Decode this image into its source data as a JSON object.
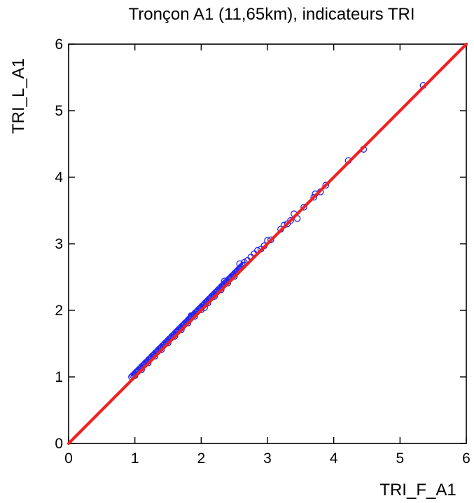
{
  "chart_data": {
    "type": "scatter",
    "title": "Tronçon A1 (11,65km), indicateurs TRI",
    "xlabel": "TRI_F_A1",
    "ylabel": "TRI_L_A1",
    "xlim": [
      0,
      6
    ],
    "ylim": [
      0,
      6
    ],
    "xticks": [
      0,
      1,
      2,
      3,
      4,
      5,
      6
    ],
    "yticks": [
      0,
      1,
      2,
      3,
      4,
      5,
      6
    ],
    "xtick_labels": [
      "0",
      "1",
      "2",
      "3",
      "4",
      "5",
      "6"
    ],
    "ytick_labels": [
      "0",
      "1",
      "2",
      "3",
      "4",
      "5",
      "6"
    ],
    "grid": false,
    "marker_color": "#2222ee",
    "line_color": "#ee2222",
    "reference_line": {
      "x": [
        0,
        6
      ],
      "y": [
        0,
        6
      ]
    },
    "points": [
      [
        0.95,
        1.0
      ],
      [
        0.97,
        1.02
      ],
      [
        0.99,
        1.03
      ],
      [
        1.0,
        1.05
      ],
      [
        1.02,
        1.07
      ],
      [
        1.04,
        1.08
      ],
      [
        1.05,
        1.1
      ],
      [
        1.07,
        1.12
      ],
      [
        1.09,
        1.13
      ],
      [
        1.1,
        1.15
      ],
      [
        1.12,
        1.17
      ],
      [
        1.14,
        1.18
      ],
      [
        1.15,
        1.2
      ],
      [
        1.17,
        1.22
      ],
      [
        1.19,
        1.23
      ],
      [
        1.2,
        1.25
      ],
      [
        1.22,
        1.27
      ],
      [
        1.24,
        1.28
      ],
      [
        1.25,
        1.3
      ],
      [
        1.27,
        1.32
      ],
      [
        1.29,
        1.33
      ],
      [
        1.3,
        1.35
      ],
      [
        1.32,
        1.37
      ],
      [
        1.34,
        1.38
      ],
      [
        1.35,
        1.4
      ],
      [
        1.37,
        1.42
      ],
      [
        1.39,
        1.43
      ],
      [
        1.4,
        1.45
      ],
      [
        1.42,
        1.47
      ],
      [
        1.44,
        1.48
      ],
      [
        1.45,
        1.5
      ],
      [
        1.47,
        1.52
      ],
      [
        1.49,
        1.53
      ],
      [
        1.5,
        1.55
      ],
      [
        1.52,
        1.57
      ],
      [
        1.54,
        1.58
      ],
      [
        1.55,
        1.6
      ],
      [
        1.57,
        1.62
      ],
      [
        1.59,
        1.63
      ],
      [
        1.6,
        1.65
      ],
      [
        1.62,
        1.67
      ],
      [
        1.64,
        1.68
      ],
      [
        1.65,
        1.7
      ],
      [
        1.67,
        1.72
      ],
      [
        1.69,
        1.73
      ],
      [
        1.7,
        1.75
      ],
      [
        1.72,
        1.77
      ],
      [
        1.74,
        1.78
      ],
      [
        1.75,
        1.8
      ],
      [
        1.77,
        1.82
      ],
      [
        1.79,
        1.83
      ],
      [
        1.8,
        1.85
      ],
      [
        1.82,
        1.87
      ],
      [
        1.84,
        1.88
      ],
      [
        1.85,
        1.9
      ],
      [
        1.87,
        1.92
      ],
      [
        1.89,
        1.93
      ],
      [
        1.9,
        1.95
      ],
      [
        1.92,
        1.97
      ],
      [
        1.94,
        1.98
      ],
      [
        1.95,
        2.0
      ],
      [
        1.97,
        2.02
      ],
      [
        1.99,
        2.03
      ],
      [
        2.0,
        2.05
      ],
      [
        2.02,
        2.07
      ],
      [
        2.04,
        2.08
      ],
      [
        2.05,
        2.1
      ],
      [
        2.07,
        2.12
      ],
      [
        2.09,
        2.13
      ],
      [
        2.1,
        2.15
      ],
      [
        2.12,
        2.17
      ],
      [
        2.14,
        2.18
      ],
      [
        2.15,
        2.2
      ],
      [
        2.17,
        2.22
      ],
      [
        2.19,
        2.23
      ],
      [
        2.2,
        2.25
      ],
      [
        2.22,
        2.27
      ],
      [
        2.24,
        2.28
      ],
      [
        2.25,
        2.3
      ],
      [
        2.27,
        2.32
      ],
      [
        2.29,
        2.33
      ],
      [
        2.3,
        2.35
      ],
      [
        2.32,
        2.37
      ],
      [
        2.34,
        2.38
      ],
      [
        2.35,
        2.4
      ],
      [
        2.37,
        2.42
      ],
      [
        2.39,
        2.43
      ],
      [
        2.4,
        2.45
      ],
      [
        2.42,
        2.47
      ],
      [
        2.44,
        2.48
      ],
      [
        2.45,
        2.5
      ],
      [
        2.47,
        2.52
      ],
      [
        2.49,
        2.53
      ],
      [
        2.5,
        2.55
      ],
      [
        2.52,
        2.57
      ],
      [
        2.54,
        2.58
      ],
      [
        2.55,
        2.6
      ],
      [
        2.57,
        2.62
      ],
      [
        2.59,
        2.63
      ],
      [
        2.6,
        2.65
      ],
      [
        2.62,
        2.67
      ],
      [
        2.64,
        2.68
      ],
      [
        1.0,
        1.02
      ],
      [
        1.1,
        1.11
      ],
      [
        1.2,
        1.21
      ],
      [
        1.3,
        1.31
      ],
      [
        1.4,
        1.41
      ],
      [
        1.5,
        1.51
      ],
      [
        1.6,
        1.61
      ],
      [
        1.7,
        1.71
      ],
      [
        1.8,
        1.81
      ],
      [
        1.9,
        1.91
      ],
      [
        2.0,
        2.01
      ],
      [
        2.1,
        2.11
      ],
      [
        2.2,
        2.21
      ],
      [
        2.3,
        2.31
      ],
      [
        2.4,
        2.41
      ],
      [
        2.5,
        2.51
      ],
      [
        1.85,
        1.92
      ],
      [
        2.05,
        2.04
      ],
      [
        2.35,
        2.44
      ],
      [
        2.58,
        2.7
      ],
      [
        2.65,
        2.72
      ],
      [
        2.7,
        2.75
      ],
      [
        2.75,
        2.8
      ],
      [
        2.8,
        2.85
      ],
      [
        2.85,
        2.9
      ],
      [
        2.9,
        2.92
      ],
      [
        2.95,
        2.97
      ],
      [
        3.0,
        3.05
      ],
      [
        3.05,
        3.06
      ],
      [
        3.2,
        3.22
      ],
      [
        3.25,
        3.28
      ],
      [
        3.3,
        3.3
      ],
      [
        3.35,
        3.35
      ],
      [
        3.4,
        3.45
      ],
      [
        3.45,
        3.38
      ],
      [
        3.55,
        3.55
      ],
      [
        3.7,
        3.7
      ],
      [
        3.72,
        3.75
      ],
      [
        3.8,
        3.78
      ],
      [
        3.88,
        3.88
      ],
      [
        4.22,
        4.25
      ],
      [
        4.45,
        4.42
      ],
      [
        5.35,
        5.38
      ]
    ]
  }
}
